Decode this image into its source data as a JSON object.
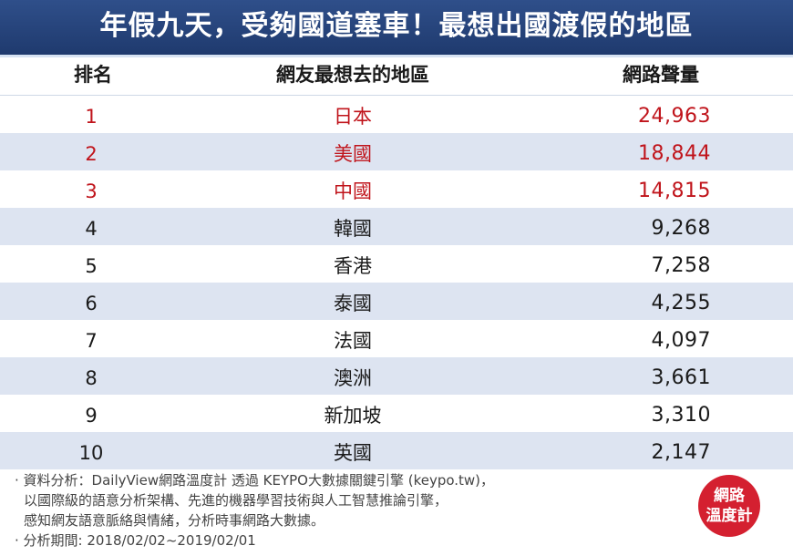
{
  "title": "年假九天，受夠國道塞車！最想出國渡假的地區",
  "header": {
    "rank": "排名",
    "region": "網友最想去的地區",
    "volume": "網路聲量"
  },
  "chart_data": {
    "type": "table",
    "columns": [
      "排名",
      "網友最想去的地區",
      "網路聲量"
    ],
    "rows": [
      {
        "rank": "1",
        "region": "日本",
        "volume": "24,963"
      },
      {
        "rank": "2",
        "region": "美國",
        "volume": "18,844"
      },
      {
        "rank": "3",
        "region": "中國",
        "volume": "14,815"
      },
      {
        "rank": "4",
        "region": "韓國",
        "volume": "9,268"
      },
      {
        "rank": "5",
        "region": "香港",
        "volume": "7,258"
      },
      {
        "rank": "6",
        "region": "泰國",
        "volume": "4,255"
      },
      {
        "rank": "7",
        "region": "法國",
        "volume": "4,097"
      },
      {
        "rank": "8",
        "region": "澳洲",
        "volume": "3,661"
      },
      {
        "rank": "9",
        "region": "新加坡",
        "volume": "3,310"
      },
      {
        "rank": "10",
        "region": "英國",
        "volume": "2,147"
      }
    ],
    "highlight_top": 3,
    "highlight_color": "#c0141b"
  },
  "notes": [
    "· 資料分析：DailyView網路溫度計 透過 KEYPO大數據關鍵引擎 (keypo.tw)，",
    "以國際級的語意分析架構、先進的機器學習技術與人工智慧推論引擎，",
    "感知網友語意脈絡與情緒，分析時事網路大數據。",
    "· 分析期間: 2018/02/02~2019/02/01"
  ],
  "logo": {
    "line1": "網路",
    "line2": "溫度計"
  },
  "colors": {
    "title_bg": "#1f3a6e",
    "stripe": "#dde4f1",
    "accent": "#c0141b",
    "logo": "#d42030"
  }
}
